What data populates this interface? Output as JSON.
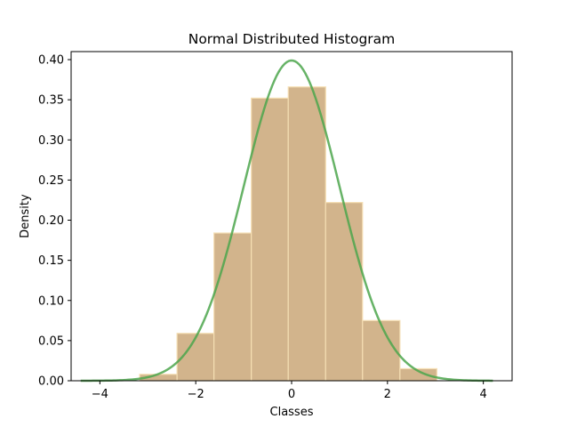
{
  "chart_data": {
    "type": "bar",
    "title": "Normal Distributed Histogram",
    "xlabel": "Classes",
    "ylabel": "Density",
    "xlim": [
      -4.6,
      4.6
    ],
    "ylim": [
      0,
      0.41
    ],
    "grid": false,
    "x_ticks": [
      -4,
      -2,
      0,
      2,
      4
    ],
    "x_tick_labels": [
      "−4",
      "−2",
      "0",
      "2",
      "4"
    ],
    "y_ticks": [
      0.0,
      0.05,
      0.1,
      0.15,
      0.2,
      0.25,
      0.3,
      0.35,
      0.4
    ],
    "y_tick_labels": [
      "0.00",
      "0.05",
      "0.10",
      "0.15",
      "0.20",
      "0.25",
      "0.30",
      "0.35",
      "0.40"
    ],
    "bins": [
      {
        "x0": -3.17,
        "x1": -2.39,
        "value": 0.008
      },
      {
        "x0": -2.39,
        "x1": -1.62,
        "value": 0.059
      },
      {
        "x0": -1.62,
        "x1": -0.84,
        "value": 0.184
      },
      {
        "x0": -0.84,
        "x1": -0.07,
        "value": 0.352
      },
      {
        "x0": -0.07,
        "x1": 0.71,
        "value": 0.366
      },
      {
        "x0": 0.71,
        "x1": 1.48,
        "value": 0.222
      },
      {
        "x0": 1.48,
        "x1": 2.26,
        "value": 0.075
      },
      {
        "x0": 2.26,
        "x1": 3.03,
        "value": 0.015
      }
    ],
    "curve": {
      "type": "normal-pdf",
      "mean": 0,
      "std": 1,
      "x_range": [
        -4.4,
        4.2
      ]
    },
    "colors": {
      "bar_fill": "#d2b48c",
      "bar_edge": "#f5deb3",
      "curve": "#4ca64c"
    }
  }
}
